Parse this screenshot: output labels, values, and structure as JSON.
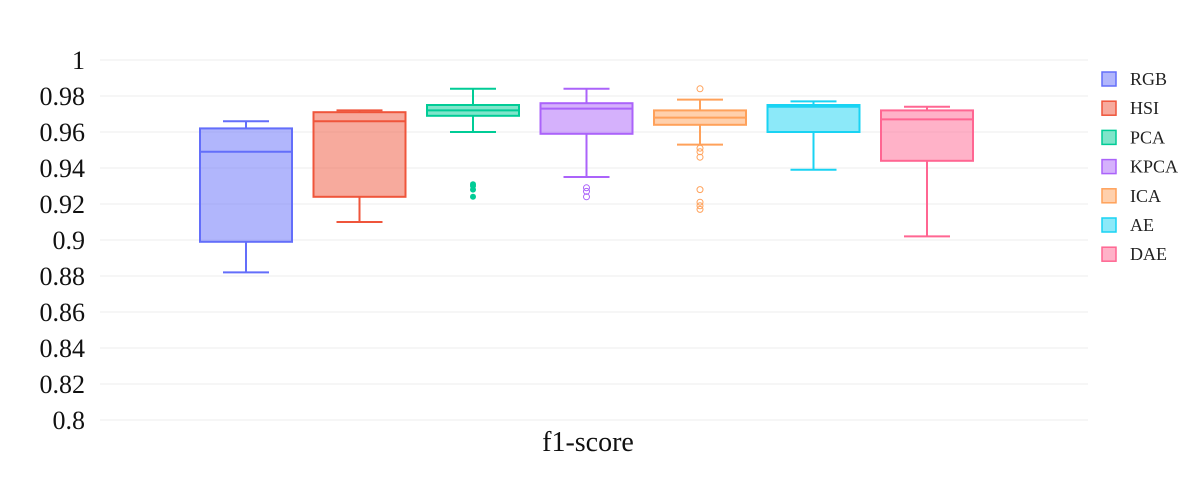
{
  "chart_data": {
    "type": "box",
    "xlabel": "f1-score",
    "ylabel": "",
    "ylim": [
      0.8,
      1.0
    ],
    "y_ticks": [
      "0.8",
      "0.82",
      "0.84",
      "0.86",
      "0.88",
      "0.9",
      "0.92",
      "0.94",
      "0.96",
      "0.98",
      "1"
    ],
    "grid": true,
    "legend_position": "right",
    "series": [
      {
        "name": "RGB",
        "color": "#636efa",
        "min": 0.882,
        "q1": 0.899,
        "median": 0.949,
        "q3": 0.962,
        "max": 0.966,
        "outliers": [],
        "outlier_style": "filled"
      },
      {
        "name": "HSI",
        "color": "#ef553b",
        "min": 0.91,
        "q1": 0.924,
        "median": 0.966,
        "q3": 0.971,
        "max": 0.972,
        "outliers": [],
        "outlier_style": "filled"
      },
      {
        "name": "PCA",
        "color": "#00cc96",
        "min": 0.96,
        "q1": 0.969,
        "median": 0.972,
        "q3": 0.975,
        "max": 0.984,
        "outliers": [
          0.924,
          0.928,
          0.93,
          0.931
        ],
        "outlier_style": "filled"
      },
      {
        "name": "KPCA",
        "color": "#ab63fa",
        "min": 0.935,
        "q1": 0.959,
        "median": 0.973,
        "q3": 0.976,
        "max": 0.984,
        "outliers": [
          0.924,
          0.927,
          0.929
        ],
        "outlier_style": "open"
      },
      {
        "name": "ICA",
        "color": "#ffa15a",
        "min": 0.953,
        "q1": 0.964,
        "median": 0.968,
        "q3": 0.972,
        "max": 0.978,
        "outliers": [
          0.984,
          0.951,
          0.949,
          0.946,
          0.928,
          0.921,
          0.919,
          0.917
        ],
        "outlier_style": "open"
      },
      {
        "name": "AE",
        "color": "#19d3f3",
        "min": 0.939,
        "q1": 0.96,
        "median": 0.974,
        "q3": 0.975,
        "max": 0.977,
        "outliers": [],
        "outlier_style": "filled"
      },
      {
        "name": "DAE",
        "color": "#ff6692",
        "min": 0.902,
        "q1": 0.944,
        "median": 0.967,
        "q3": 0.972,
        "max": 0.974,
        "outliers": [],
        "outlier_style": "filled"
      }
    ]
  }
}
